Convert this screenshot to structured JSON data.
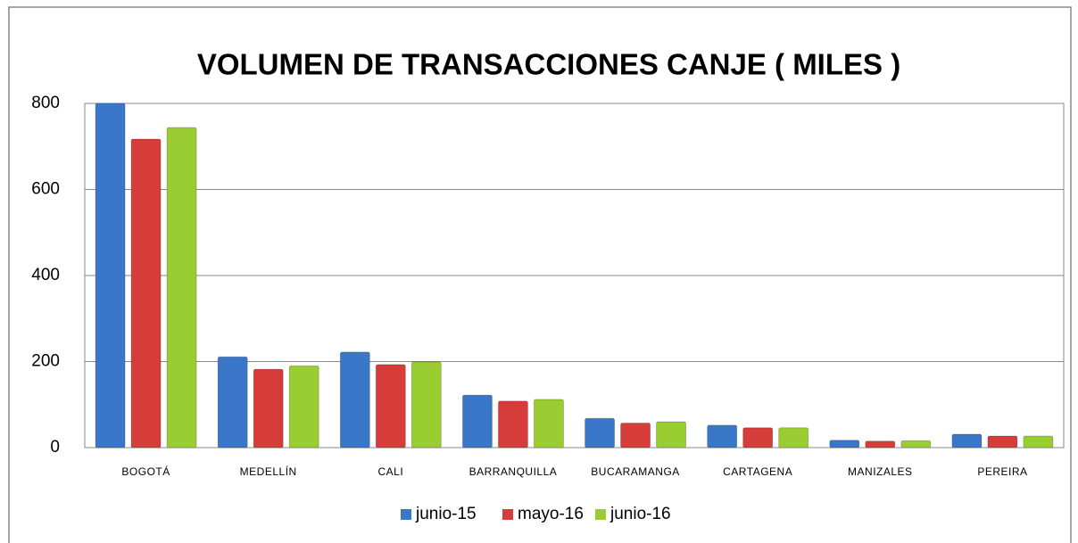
{
  "chart_data": {
    "type": "bar",
    "title": "VOLUMEN DE TRANSACCIONES CANJE ( MILES )",
    "categories": [
      "BOGOTÁ",
      "MEDELLÍN",
      "CALI",
      "BARRANQUILLA",
      "BUCARAMANGA",
      "CARTAGENA",
      "MANIZALES",
      "PEREIRA"
    ],
    "series": [
      {
        "name": "junio-15",
        "color": "#3a77c9",
        "values": [
          800,
          211,
          222,
          122,
          68,
          52,
          17,
          31
        ]
      },
      {
        "name": "mayo-16",
        "color": "#d63c3a",
        "values": [
          717,
          182,
          193,
          108,
          57,
          46,
          15,
          27
        ]
      },
      {
        "name": "junio-16",
        "color": "#9acd32",
        "values": [
          744,
          190,
          199,
          112,
          60,
          46,
          16,
          27
        ]
      }
    ],
    "ylim": [
      0,
      800
    ],
    "yticks": [
      0,
      200,
      400,
      600,
      800
    ],
    "grid": true,
    "legend": "bottom"
  }
}
